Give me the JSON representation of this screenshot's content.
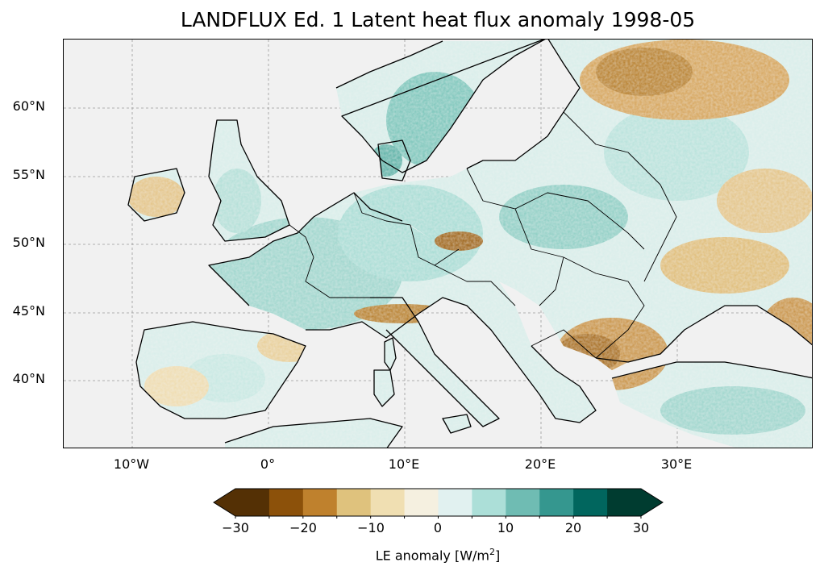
{
  "title": "LANDFLUX Ed. 1 Latent heat flux anomaly 1998-05",
  "map": {
    "extent": {
      "lon": [
        -15,
        40
      ],
      "lat": [
        35,
        65
      ]
    },
    "gridlines": "dashed grey",
    "lat_ticks": [
      {
        "value": 60,
        "label": "60°N"
      },
      {
        "value": 55,
        "label": "55°N"
      },
      {
        "value": 50,
        "label": "50°N"
      },
      {
        "value": 45,
        "label": "45°N"
      },
      {
        "value": 40,
        "label": "40°N"
      }
    ],
    "lon_ticks": [
      {
        "value": -10,
        "label": "10°W"
      },
      {
        "value": 0,
        "label": "0°"
      },
      {
        "value": 10,
        "label": "10°E"
      },
      {
        "value": 20,
        "label": "20°E"
      },
      {
        "value": 30,
        "label": "30°E"
      }
    ],
    "ocean_color": "#f1f1f1",
    "border_color": "#000000"
  },
  "colorbar": {
    "label_prefix": "LE anomaly [W/m",
    "label_sup": "2",
    "label_suffix": "]",
    "colormap": "BrBG",
    "extend": "both",
    "range": [
      -30,
      30
    ],
    "bounds": [
      -30,
      -25,
      -20,
      -15,
      -10,
      -5,
      0,
      5,
      10,
      15,
      20,
      25,
      30
    ],
    "colors": [
      "#543005",
      "#8c510a",
      "#bf812d",
      "#dfc27d",
      "#f0dfb2",
      "#f5f0e0",
      "#e1f1f0",
      "#acdfd8",
      "#6fbcb3",
      "#35978f",
      "#01665e",
      "#003c30"
    ],
    "under_color": "#543005",
    "over_color": "#003c30",
    "ticks": [
      {
        "value": -30,
        "label": "−30"
      },
      {
        "value": -20,
        "label": "−20"
      },
      {
        "value": -10,
        "label": "−10"
      },
      {
        "value": 0,
        "label": "0"
      },
      {
        "value": 10,
        "label": "10"
      },
      {
        "value": 20,
        "label": "20"
      },
      {
        "value": 30,
        "label": "30"
      }
    ]
  }
}
